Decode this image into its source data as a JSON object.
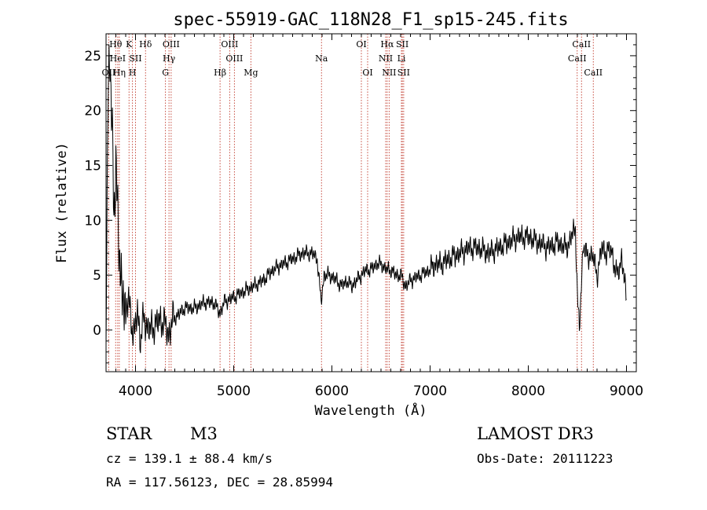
{
  "chart_data": {
    "type": "line",
    "title": "spec-55919-GAC_118N28_F1_sp15-245.fits",
    "xlabel": "Wavelength (Å)",
    "ylabel": "Flux (relative)",
    "xlim": [
      3700,
      9100
    ],
    "ylim": [
      -3.8,
      27.0
    ],
    "xticks": [
      4000,
      5000,
      6000,
      7000,
      8000,
      9000
    ],
    "yticks": [
      0,
      5,
      10,
      15,
      20,
      25
    ],
    "series": [
      {
        "name": "flux",
        "x": [
          3700,
          3720,
          3740,
          3760,
          3780,
          3800,
          3820,
          3840,
          3860,
          3880,
          3900,
          3930,
          3960,
          3990,
          4020,
          4050,
          4080,
          4110,
          4150,
          4200,
          4250,
          4300,
          4340,
          4380,
          4450,
          4500,
          4600,
          4700,
          4800,
          4860,
          4900,
          5000,
          5100,
          5200,
          5300,
          5400,
          5500,
          5600,
          5700,
          5800,
          5850,
          5890,
          5920,
          5980,
          6050,
          6100,
          6150,
          6200,
          6250,
          6300,
          6350,
          6400,
          6450,
          6500,
          6560,
          6600,
          6650,
          6700,
          6750,
          6800,
          6900,
          7000,
          7050,
          7100,
          7200,
          7300,
          7400,
          7500,
          7600,
          7700,
          7800,
          7900,
          8000,
          8100,
          8200,
          8300,
          8380,
          8420,
          8480,
          8500,
          8520,
          8560,
          8600,
          8650,
          8700,
          8750,
          8800,
          8850,
          8870,
          8900,
          8950,
          9000
        ],
        "y": [
          0.5,
          21.0,
          26.0,
          19.0,
          9.0,
          16.0,
          11.0,
          6.0,
          2.0,
          4.5,
          1.0,
          3.0,
          0.5,
          -0.5,
          2.0,
          -1.0,
          1.0,
          0.5,
          0.0,
          0.5,
          1.0,
          0.5,
          -0.5,
          1.0,
          1.5,
          2.0,
          2.0,
          2.5,
          2.5,
          1.5,
          2.5,
          3.0,
          3.5,
          4.0,
          4.5,
          5.5,
          6.0,
          6.5,
          7.0,
          7.0,
          6.5,
          2.5,
          5.0,
          5.0,
          4.5,
          4.0,
          4.5,
          4.0,
          4.5,
          5.0,
          5.5,
          5.5,
          6.0,
          6.0,
          5.5,
          5.5,
          5.0,
          5.0,
          4.0,
          4.5,
          5.0,
          5.5,
          6.0,
          6.0,
          6.5,
          7.0,
          7.5,
          7.5,
          7.0,
          7.5,
          8.0,
          8.5,
          8.5,
          8.0,
          7.5,
          8.0,
          7.5,
          8.0,
          9.5,
          3.0,
          0.0,
          8.0,
          6.5,
          7.0,
          5.0,
          7.5,
          7.0,
          7.5,
          6.0,
          5.0,
          6.5,
          3.0
        ]
      }
    ],
    "lines": [
      {
        "label": "OII",
        "wave": 3727,
        "row": 3
      },
      {
        "label": "Hθ",
        "wave": 3798,
        "row": 1
      },
      {
        "label": "HeI",
        "wave": 3819,
        "row": 2
      },
      {
        "label": "Hη",
        "wave": 3835,
        "row": 3
      },
      {
        "label": "K",
        "wave": 3934,
        "row": 1
      },
      {
        "label": "SII",
        "wave": 4000,
        "row": 2
      },
      {
        "label": "H",
        "wave": 3969,
        "row": 3
      },
      {
        "label": "Hδ",
        "wave": 4102,
        "row": 1
      },
      {
        "label": "OIII",
        "wave": 4363,
        "row": 1
      },
      {
        "label": "Hγ",
        "wave": 4341,
        "row": 2
      },
      {
        "label": "G",
        "wave": 4305,
        "row": 3
      },
      {
        "label": "Hβ",
        "wave": 4861,
        "row": 3
      },
      {
        "label": "OIII",
        "wave": 4959,
        "row": 1
      },
      {
        "label": "OIII",
        "wave": 5007,
        "row": 2
      },
      {
        "label": "Mg",
        "wave": 5175,
        "row": 3
      },
      {
        "label": "Na",
        "wave": 5894,
        "row": 2
      },
      {
        "label": "OI",
        "wave": 6300,
        "row": 1
      },
      {
        "label": "OI",
        "wave": 6364,
        "row": 3
      },
      {
        "label": "Hα",
        "wave": 6563,
        "row": 1
      },
      {
        "label": "NII",
        "wave": 6548,
        "row": 2
      },
      {
        "label": "NII",
        "wave": 6583,
        "row": 3
      },
      {
        "label": "SII",
        "wave": 6717,
        "row": 1
      },
      {
        "label": "Li",
        "wave": 6708,
        "row": 2
      },
      {
        "label": "SII",
        "wave": 6731,
        "row": 3
      },
      {
        "label": "CaII",
        "wave": 8542,
        "row": 1
      },
      {
        "label": "CaII",
        "wave": 8498,
        "row": 2
      },
      {
        "label": "CaII",
        "wave": 8662,
        "row": 3
      }
    ]
  },
  "info": {
    "class_label": "STAR",
    "subclass": "M3",
    "survey": "LAMOST DR3",
    "cz": "cz = 139.1 ± 88.4 km/s",
    "obs_date": "Obs-Date: 20111223",
    "radec": "RA = 117.56123, DEC =  28.85994"
  },
  "colors": {
    "line_marker": "#c0392b",
    "spectrum": "#000000"
  }
}
